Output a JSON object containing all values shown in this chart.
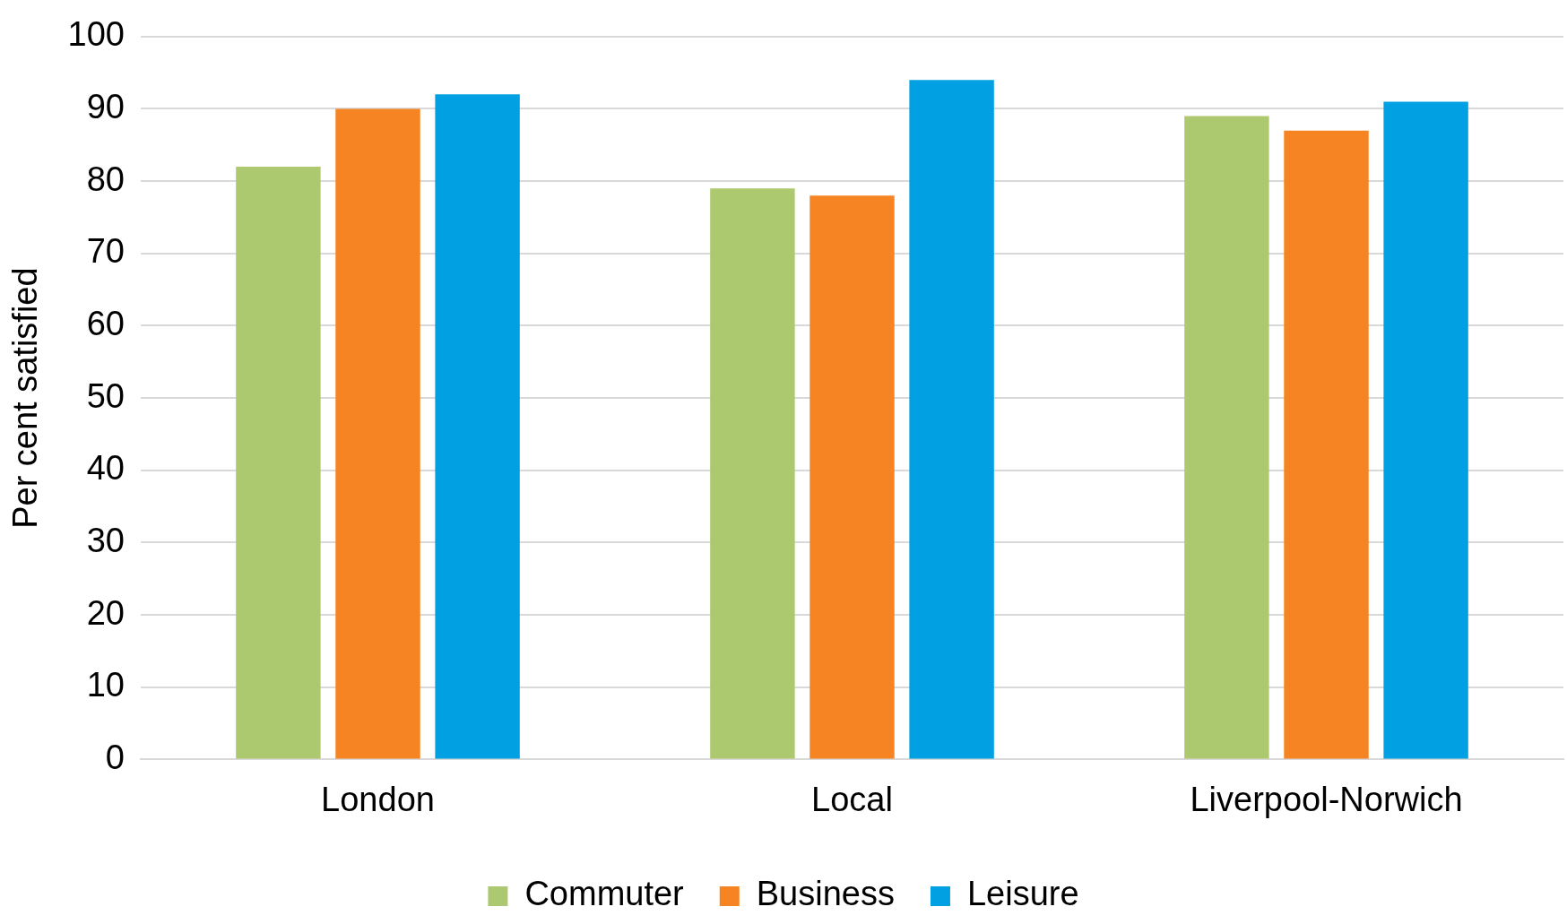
{
  "chart_data": {
    "type": "bar",
    "ylabel": "Per cent satisfied",
    "categories": [
      "London",
      "Local",
      "Liverpool-Norwich"
    ],
    "series": [
      {
        "name": "Commuter",
        "color": "#adc96f",
        "values": [
          82,
          79,
          89
        ]
      },
      {
        "name": "Business",
        "color": "#f68422",
        "values": [
          90,
          78,
          87
        ]
      },
      {
        "name": "Leisure",
        "color": "#00a0e2",
        "values": [
          92,
          94,
          91
        ]
      }
    ],
    "ylim": [
      0,
      100
    ],
    "yticks": [
      0,
      10,
      20,
      30,
      40,
      50,
      60,
      70,
      80,
      90,
      100
    ],
    "grid": "y",
    "legend": "bottom"
  }
}
